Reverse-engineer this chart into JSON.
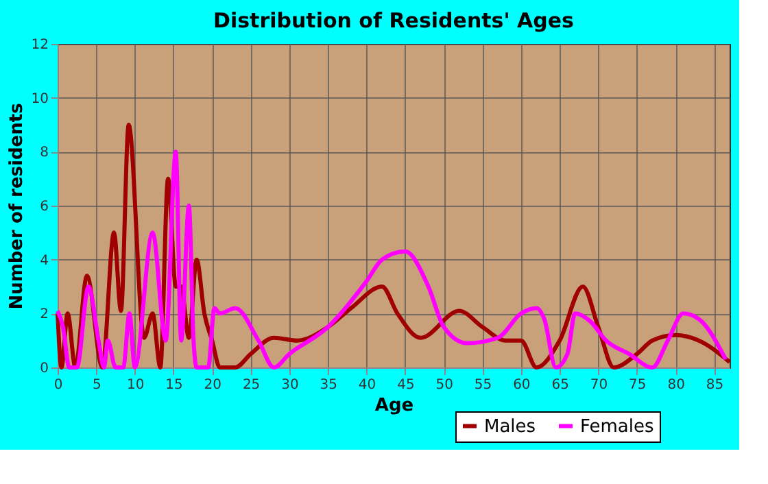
{
  "chart_data": {
    "type": "line",
    "title": "Distribution of Residents' Ages",
    "xlabel": "Age",
    "ylabel": "Number of residents",
    "xlim": [
      0,
      87
    ],
    "xticks": [
      0,
      5,
      10,
      15,
      20,
      25,
      30,
      35,
      40,
      45,
      50,
      55,
      60,
      65,
      70,
      75,
      80,
      85
    ],
    "ylim": [
      0,
      12
    ],
    "yticks": [
      0,
      2,
      4,
      6,
      8,
      10,
      12
    ],
    "grid": true,
    "legend": "bottom",
    "line_style": "solid",
    "marker": "none",
    "series": [
      {
        "name": "Males",
        "color": "#a00000",
        "x": [
          0,
          0.5,
          1.3,
          2.3,
          3.8,
          5.8,
          7.3,
          8.2,
          9.2,
          11.2,
          12.3,
          13.3,
          14.3,
          15.3,
          16,
          17,
          18,
          19,
          20,
          21,
          23,
          25,
          28,
          31,
          35,
          38,
          42,
          44,
          47,
          52,
          55,
          58,
          60,
          62,
          65,
          68,
          70,
          72,
          75,
          77,
          80,
          83,
          87
        ],
        "values": [
          2,
          0,
          2,
          0,
          3.4,
          0,
          5,
          2.1,
          9,
          1.1,
          2,
          0,
          7,
          3,
          3,
          1.1,
          4,
          2,
          1,
          0,
          0,
          0.5,
          1.1,
          1,
          1.5,
          2.2,
          3,
          2,
          1.1,
          2.1,
          1.5,
          1,
          1,
          0,
          1,
          3,
          1.5,
          0,
          0.5,
          1,
          1.2,
          1,
          0.2
        ]
      },
      {
        "name": "Females",
        "color": "#ff00ff",
        "x": [
          0,
          0.7,
          1.5,
          2.5,
          4,
          5.3,
          6,
          6.5,
          7.5,
          8.5,
          9.3,
          10,
          12.3,
          14,
          15.3,
          16,
          17,
          17.6,
          18,
          19.5,
          20.3,
          21,
          23,
          26,
          28,
          30,
          35,
          40,
          42,
          45,
          48,
          50,
          53,
          57,
          60,
          62,
          63,
          64.5,
          66,
          67,
          69,
          71,
          74,
          77,
          79,
          81,
          83,
          86.5
        ],
        "values": [
          2.1,
          1.5,
          0,
          0,
          3,
          1,
          0,
          1,
          0,
          0,
          2,
          0,
          5,
          1,
          8,
          1,
          6,
          1,
          0,
          0,
          2.2,
          2,
          2.2,
          1,
          0,
          0.5,
          1.5,
          3.2,
          4,
          4.3,
          3,
          1.5,
          0.9,
          1.1,
          2,
          2.2,
          1.8,
          0,
          0.5,
          2,
          1.7,
          1,
          0.5,
          0,
          1,
          2,
          1.8,
          0.3
        ]
      }
    ]
  }
}
